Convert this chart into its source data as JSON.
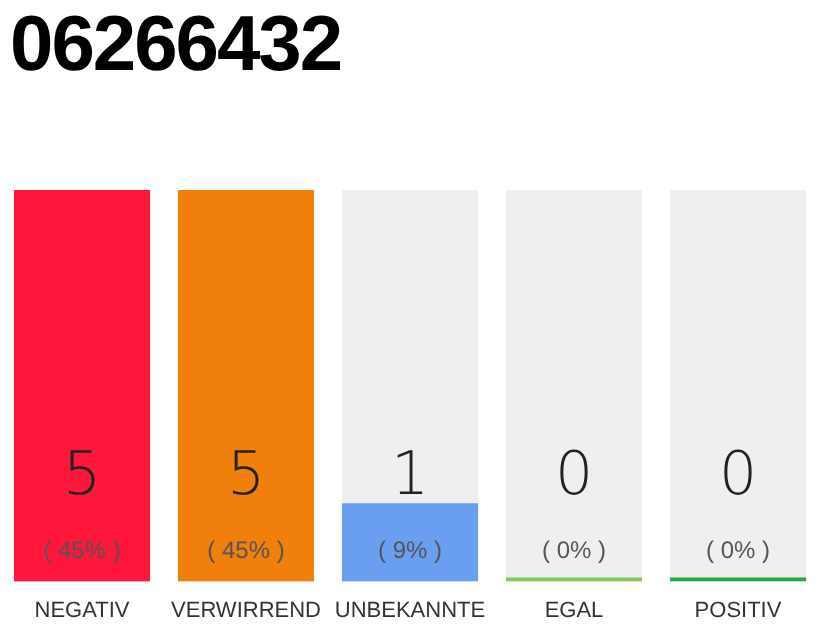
{
  "chart_data": {
    "type": "bar",
    "title": "06266432",
    "categories": [
      "NEGATIV",
      "VERWIRREND",
      "UNBEKANNTE",
      "EGAL",
      "POSITIV"
    ],
    "values": [
      5,
      5,
      1,
      0,
      0
    ],
    "colors": [
      "#fe163b",
      "#f07f0c",
      "#6a9ef0",
      "#80c860",
      "#22aa44"
    ],
    "value_labels": [
      "5\n( 45% )",
      "5\n( 45% )",
      "1\n( 9% )",
      "0\n( 0% )",
      "0\n( 0% )"
    ],
    "grid": false,
    "legend": false,
    "tick_labels": "x"
  }
}
